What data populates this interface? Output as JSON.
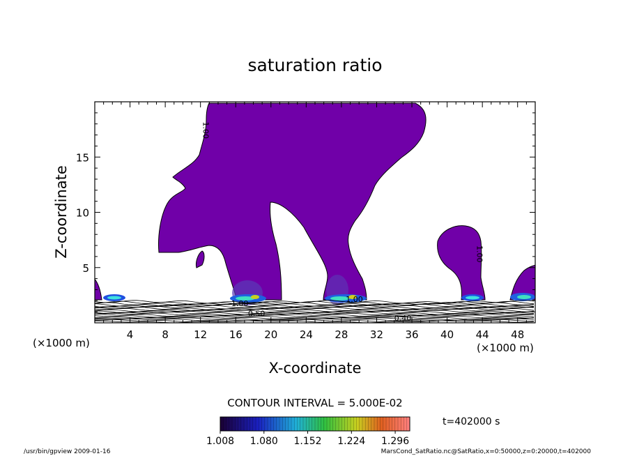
{
  "chart_data": {
    "type": "contour",
    "title": "saturation ratio",
    "xlabel": "X-coordinate",
    "ylabel": "Z-coordinate",
    "x_unit": "(×1000 m)",
    "y_unit": "(×1000 m)",
    "xlim": [
      0,
      50
    ],
    "ylim": [
      0,
      20
    ],
    "x_ticks": [
      4,
      8,
      12,
      16,
      20,
      24,
      28,
      32,
      36,
      40,
      44,
      48
    ],
    "y_ticks": [
      5,
      10,
      15
    ],
    "contour_interval_label": "CONTOUR INTERVAL = 5.000E-02",
    "time_label": "t=402000 s",
    "colorbar": {
      "ticks": [
        "1.008",
        "1.080",
        "1.152",
        "1.224",
        "1.296"
      ],
      "min": 1.008,
      "max": 1.32
    },
    "contour_labels": [
      {
        "text": "1.00",
        "x": 12.3,
        "y": 18.2
      },
      {
        "text": "1.00",
        "x": 43.4,
        "y": 7.0
      },
      {
        "text": "1.00",
        "x": 15.5,
        "y": 1.5
      },
      {
        "text": "1.00",
        "x": 28.5,
        "y": 1.9
      },
      {
        "text": "0.50",
        "x": 17.4,
        "y": 0.6
      },
      {
        "text": "0.40",
        "x": 34.0,
        "y": 0.2
      }
    ],
    "fill_color": "#7000a8",
    "footer_left": "/usr/bin/gpview   2009-01-16",
    "footer_right": "MarsCond_SatRatio.nc@SatRatio,x=0:50000,z=0:20000,t=402000"
  }
}
